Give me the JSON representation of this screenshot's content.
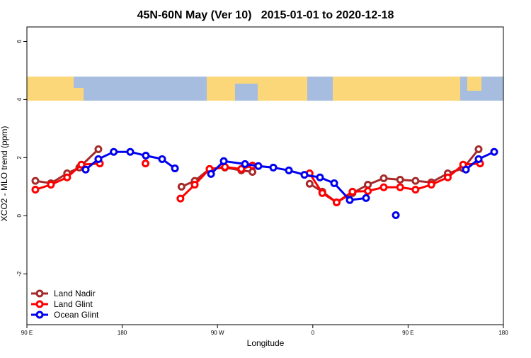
{
  "chart_data": {
    "type": "line",
    "title": "45N-60N May (Ver 10)   2015-01-01 to 2020-12-18",
    "x_label": "Longitude",
    "y_label": "XCO2 - MLO trend (ppm)",
    "xlim": [
      90,
      540
    ],
    "xticks": [
      {
        "value": 90,
        "label": "90 E"
      },
      {
        "value": 180,
        "label": "180"
      },
      {
        "value": 270,
        "label": "90 W"
      },
      {
        "value": 360,
        "label": "0"
      },
      {
        "value": 450,
        "label": "90 E"
      },
      {
        "value": 540,
        "label": "180"
      }
    ],
    "ylim": [
      -3.75,
      6.5
    ],
    "yticks": [
      -2,
      0,
      2,
      4,
      6
    ],
    "legend": "bottom-left",
    "series": [
      {
        "name": "Land Nadir",
        "color": "#a52a2a",
        "x": [
          98,
          112.7,
          128,
          139.5,
          157.5,
          null,
          236,
          248.5,
          262.5,
          277,
          292.5,
          303,
          null,
          357,
          369,
          382.5,
          397.5,
          412,
          427,
          442.5,
          457,
          472,
          487.5,
          502,
          516.6
        ],
        "values": [
          1.2,
          1.12,
          1.46,
          1.66,
          2.29,
          null,
          1.0,
          1.2,
          1.61,
          1.66,
          1.56,
          1.51,
          null,
          1.1,
          0.83,
          0.46,
          0.78,
          1.07,
          1.29,
          1.24,
          1.2,
          1.15,
          1.46,
          1.63,
          2.29
        ]
      },
      {
        "name": "Land Glint",
        "color": "#ff0000",
        "x": [
          98,
          112.7,
          128,
          141.5,
          158.9,
          null,
          202,
          null,
          235,
          248.5,
          262.5,
          277,
          292.5,
          303,
          null,
          357,
          369,
          382.5,
          397.5,
          412,
          427,
          442.5,
          457,
          472,
          487.5,
          502,
          518
        ],
        "values": [
          0.9,
          1.07,
          1.32,
          1.76,
          1.8,
          null,
          1.8,
          null,
          0.59,
          1.07,
          1.61,
          1.68,
          1.61,
          1.73,
          null,
          1.46,
          0.78,
          0.46,
          0.83,
          0.85,
          0.98,
          0.98,
          0.9,
          1.07,
          1.32,
          1.76,
          1.8
        ]
      },
      {
        "name": "Ocean Glint",
        "color": "#0000ee",
        "x": [
          145.5,
          157.5,
          172,
          187.6,
          202.3,
          217.7,
          229.8,
          null,
          263.9,
          275.9,
          296,
          308.6,
          322.7,
          337.4,
          352.1,
          366.8,
          380.2,
          394.9,
          410.3,
          null,
          438.4,
          null,
          504.6,
          516.6,
          531.3
        ],
        "values": [
          1.59,
          1.95,
          2.2,
          2.2,
          2.07,
          1.95,
          1.63,
          null,
          1.44,
          1.88,
          1.78,
          1.71,
          1.66,
          1.56,
          1.41,
          1.32,
          1.12,
          0.54,
          0.61,
          null,
          0.02,
          null,
          1.59,
          1.95,
          2.2
        ]
      }
    ]
  }
}
